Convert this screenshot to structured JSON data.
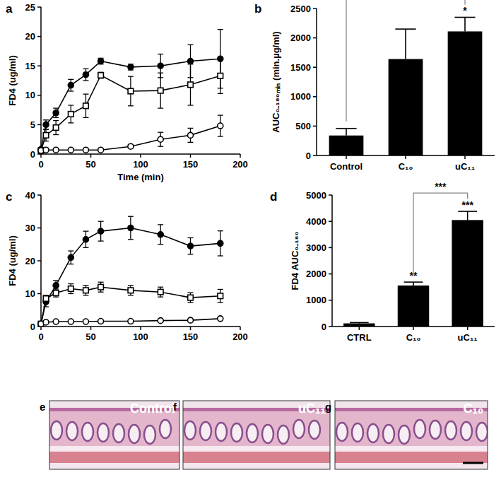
{
  "chart_data": [
    {
      "type": "line",
      "title": "a",
      "x_label": "Time (min)",
      "y_label": "FD4 (ug/ml)",
      "x": [
        0,
        5,
        15,
        30,
        45,
        60,
        90,
        120,
        150,
        180
      ],
      "xlim": [
        0,
        200
      ],
      "xticks": [
        0,
        50,
        100,
        150,
        200
      ],
      "ylim": [
        0,
        25
      ],
      "yticks": [
        0,
        5,
        10,
        15,
        20,
        25
      ],
      "series": [
        {
          "color": "#000000",
          "marker": "filled-circle",
          "values": [
            0.8,
            5,
            7,
            11.7,
            13.5,
            15.8,
            14.8,
            15,
            15.8,
            16.2
          ],
          "errors": [
            0.3,
            0.8,
            0.8,
            1,
            1,
            0.5,
            0.5,
            2,
            2.8,
            5
          ]
        },
        {
          "color": "#000000",
          "marker": "open-square",
          "values": [
            0.6,
            3.2,
            4.5,
            6.8,
            8.2,
            13.4,
            10.7,
            10.8,
            11.8,
            13.3
          ],
          "errors": [
            0.2,
            1,
            1.2,
            1.5,
            2,
            0.5,
            2.5,
            3,
            3.5,
            3
          ]
        },
        {
          "color": "#000000",
          "marker": "open-circle",
          "values": [
            0.6,
            0.7,
            0.7,
            0.7,
            0.7,
            0.7,
            1.3,
            2.5,
            3.2,
            4.8
          ],
          "errors": [
            0,
            0.1,
            0.1,
            0.1,
            0.1,
            0.1,
            0.3,
            1.2,
            1.2,
            1.8
          ]
        }
      ]
    },
    {
      "type": "bar",
      "title": "b",
      "y_label": "AUC₀₋₁₈₀ₘᵢₙ (min.µg/ml)",
      "categories": [
        "Control",
        "C₁₀",
        "uC₁₁"
      ],
      "values": [
        340,
        1640,
        2110
      ],
      "errors": [
        120,
        510,
        240
      ],
      "color": "#000000",
      "ylim": [
        0,
        2500
      ],
      "yticks": [
        0,
        500,
        1000,
        1500,
        2000,
        2500
      ],
      "brackets": [
        {
          "from": "Control",
          "to": "uC₁₁"
        }
      ],
      "annotations": [
        {
          "at": "uC₁₁",
          "text": "*"
        }
      ]
    },
    {
      "type": "line",
      "title": "c",
      "y_label": "FD4 (ug/ml)",
      "x": [
        0,
        5,
        15,
        30,
        45,
        60,
        90,
        120,
        150,
        180
      ],
      "xlim": [
        0,
        200
      ],
      "xticks": [
        0,
        50,
        100,
        150,
        200
      ],
      "ylim": [
        0,
        40
      ],
      "yticks": [
        0,
        10,
        20,
        30,
        40
      ],
      "series": [
        {
          "color": "#000000",
          "marker": "filled-circle",
          "values": [
            0.8,
            7.5,
            12.5,
            21,
            26.5,
            29,
            30,
            28,
            24.5,
            25.3
          ],
          "errors": [
            0.3,
            1.5,
            1.5,
            2,
            2.5,
            3,
            3.5,
            3,
            2.5,
            3.8
          ]
        },
        {
          "color": "#000000",
          "marker": "open-square",
          "values": [
            0.8,
            8.5,
            10.2,
            11.5,
            11,
            12,
            11,
            10.5,
            8.8,
            9.3
          ],
          "errors": [
            0.3,
            1,
            1.2,
            1.5,
            1.5,
            1.5,
            1.5,
            1.5,
            1.5,
            2
          ]
        },
        {
          "color": "#000000",
          "marker": "open-circle",
          "values": [
            0.8,
            1.3,
            1.5,
            1.5,
            1.5,
            1.6,
            1.6,
            1.8,
            1.9,
            2.4
          ],
          "errors": [
            0.2,
            0.2,
            0.2,
            0.2,
            0.2,
            0.2,
            0.2,
            0.2,
            0.2,
            0.3
          ]
        }
      ]
    },
    {
      "type": "bar",
      "title": "d",
      "y_label": "FD4 AUC₀₋₁₈₀",
      "categories": [
        "CTRL",
        "C₁₀",
        "uC₁₁"
      ],
      "values": [
        120,
        1560,
        4050
      ],
      "errors": [
        30,
        130,
        330
      ],
      "color": "#000000",
      "ylim": [
        0,
        5000
      ],
      "yticks": [
        0,
        1000,
        2000,
        3000,
        4000,
        5000
      ],
      "brackets": [
        {
          "from": "C₁₀",
          "to": "uC₁₁",
          "text": "***"
        }
      ],
      "annotations": [
        {
          "at": "C₁₀",
          "text": "**"
        },
        {
          "at": "uC₁₁",
          "text": "***"
        }
      ]
    }
  ],
  "images": [
    {
      "letter": "e",
      "label": "Control"
    },
    {
      "letter": "f",
      "label": "uC₁₁"
    },
    {
      "letter": "g",
      "label": "C₁₀"
    }
  ]
}
